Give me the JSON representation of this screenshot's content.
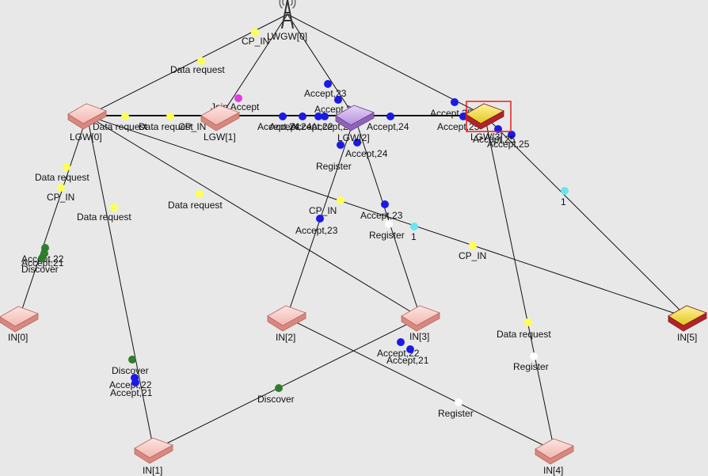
{
  "colors": {
    "background": "#e8e8e8",
    "link": "#111111",
    "node_pink": "#f6c9c4",
    "node_pink_dark": "#d9887f",
    "node_purple": "#c9a8e8",
    "node_purple_dark": "#8e63b8",
    "node_yellow": "#f2df3a",
    "node_yellow_dark": "#b4222a",
    "selection": "#e02020",
    "msg_yellow": "#ffff55",
    "msg_blue": "#1a1ae6",
    "msg_green": "#2e7d2e",
    "msg_magenta": "#e33be3",
    "msg_cyan": "#66e6f0",
    "msg_white": "#ffffff"
  },
  "nodes": [
    {
      "id": "LWGW0",
      "label": "LWGW[0]",
      "kind": "antenna-icon"
    },
    {
      "id": "LGW0",
      "label": "LGW[0]",
      "kind": "router-pink-icon"
    },
    {
      "id": "LGW1",
      "label": "LGW[1]",
      "kind": "router-pink-icon"
    },
    {
      "id": "LGW2",
      "label": "LGW[2]",
      "kind": "router-purple-icon"
    },
    {
      "id": "LGW3",
      "label": "LGW[3]",
      "kind": "router-yellow-icon",
      "selected": true
    },
    {
      "id": "IN0",
      "label": "IN[0]",
      "kind": "router-pink-icon"
    },
    {
      "id": "IN1",
      "label": "IN[1]",
      "kind": "router-pink-icon"
    },
    {
      "id": "IN2",
      "label": "IN[2]",
      "kind": "router-pink-icon"
    },
    {
      "id": "IN3",
      "label": "IN[3]",
      "kind": "router-pink-icon"
    },
    {
      "id": "IN4",
      "label": "IN[4]",
      "kind": "router-pink-icon"
    },
    {
      "id": "IN5",
      "label": "IN[5]",
      "kind": "router-yellow-icon"
    }
  ],
  "links": [
    [
      "LWGW0",
      "LGW0"
    ],
    [
      "LWGW0",
      "LGW1"
    ],
    [
      "LWGW0",
      "LGW2"
    ],
    [
      "LWGW0",
      "LGW3"
    ],
    [
      "LGW0",
      "LGW3"
    ],
    [
      "LGW0",
      "IN0"
    ],
    [
      "LGW0",
      "IN1"
    ],
    [
      "LGW0",
      "IN3"
    ],
    [
      "LGW0",
      "IN5"
    ],
    [
      "LGW2",
      "IN2"
    ],
    [
      "LGW2",
      "IN3"
    ],
    [
      "LGW3",
      "IN4"
    ],
    [
      "LGW3",
      "IN5"
    ],
    [
      "IN1",
      "IN3"
    ],
    [
      "IN2",
      "IN4"
    ]
  ],
  "messages": [
    {
      "color": "msg_yellow",
      "text": "CP_IN"
    },
    {
      "color": "msg_yellow",
      "text": "Data request"
    },
    {
      "color": "msg_magenta",
      "text": "Join Accept"
    },
    {
      "color": "msg_blue",
      "text": "Accept,23"
    },
    {
      "color": "msg_blue",
      "text": "Accept,24"
    },
    {
      "color": "msg_blue",
      "text": "Accept,25"
    },
    {
      "color": "msg_blue",
      "text": "Accept,25"
    },
    {
      "color": "msg_blue",
      "text": "Accept,25"
    },
    {
      "color": "msg_yellow",
      "text": "Data request"
    },
    {
      "color": "msg_yellow",
      "text": "Data request"
    },
    {
      "color": "msg_yellow",
      "text": "CP_IN"
    },
    {
      "color": "msg_blue",
      "text": "Accept,24"
    },
    {
      "color": "msg_blue",
      "text": "Accept,24"
    },
    {
      "color": "msg_blue",
      "text": "Accept,22"
    },
    {
      "color": "msg_blue",
      "text": "Accept,21"
    },
    {
      "color": "msg_blue",
      "text": "Accept,24"
    },
    {
      "color": "msg_blue",
      "text": "Register"
    },
    {
      "color": "msg_blue",
      "text": "Accept,24"
    },
    {
      "color": "msg_yellow",
      "text": "Data request"
    },
    {
      "color": "msg_yellow",
      "text": "CP_IN"
    },
    {
      "color": "msg_yellow",
      "text": "Data request"
    },
    {
      "color": "msg_yellow",
      "text": "Data request"
    },
    {
      "color": "msg_yellow",
      "text": "CP_IN"
    },
    {
      "color": "msg_blue",
      "text": "Accept,23"
    },
    {
      "color": "msg_blue",
      "text": "Accept,23"
    },
    {
      "color": "msg_white",
      "text": "Register"
    },
    {
      "color": "msg_cyan",
      "text": "1"
    },
    {
      "color": "msg_cyan",
      "text": "1"
    },
    {
      "color": "msg_yellow",
      "text": "CP_IN"
    },
    {
      "color": "msg_green",
      "text": "Accept,22"
    },
    {
      "color": "msg_green",
      "text": "Accept,21"
    },
    {
      "color": "msg_green",
      "text": "Discover"
    },
    {
      "color": "msg_green",
      "text": "Discover"
    },
    {
      "color": "msg_blue",
      "text": "Accept,22"
    },
    {
      "color": "msg_blue",
      "text": "Accept,21"
    },
    {
      "color": "msg_blue",
      "text": "Accept,22"
    },
    {
      "color": "msg_blue",
      "text": "Accept,21"
    },
    {
      "color": "msg_green",
      "text": "Discover"
    },
    {
      "color": "msg_yellow",
      "text": "Data request"
    },
    {
      "color": "msg_white",
      "text": "Register"
    },
    {
      "color": "msg_white",
      "text": "Register"
    },
    {
      "color": "msg_blue",
      "text": "Accept,25"
    }
  ]
}
